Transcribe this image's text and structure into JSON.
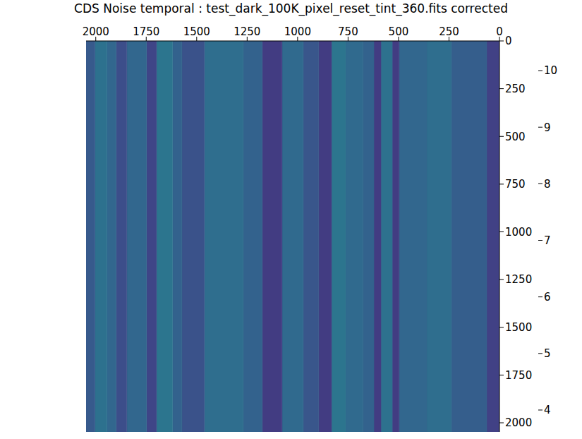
{
  "chart_data": {
    "type": "heatmap",
    "title": "CDS Noise temporal : test_dark_100K_pixel_reset_tint_360.fits corrected",
    "xlim": [
      2048,
      0
    ],
    "xticks": [
      2000,
      1750,
      1500,
      1250,
      1000,
      750,
      500,
      250,
      0
    ],
    "ylim": [
      2048,
      0
    ],
    "yticks": [
      0,
      250,
      500,
      750,
      1000,
      1250,
      1500,
      1750,
      2000
    ],
    "columns": [
      {
        "x": [
          0,
          63
        ],
        "value": 5.0
      },
      {
        "x": [
          63,
          238
        ],
        "value": 5.7
      },
      {
        "x": [
          238,
          360
        ],
        "value": 6.1
      },
      {
        "x": [
          360,
          497
        ],
        "value": 5.9
      },
      {
        "x": [
          497,
          531
        ],
        "value": 4.9
      },
      {
        "x": [
          531,
          587
        ],
        "value": 6.2
      },
      {
        "x": [
          587,
          622
        ],
        "value": 4.9
      },
      {
        "x": [
          622,
          675
        ],
        "value": 5.8
      },
      {
        "x": [
          675,
          762
        ],
        "value": 6.0
      },
      {
        "x": [
          762,
          832
        ],
        "value": 6.3
      },
      {
        "x": [
          832,
          895
        ],
        "value": 4.9
      },
      {
        "x": [
          895,
          972
        ],
        "value": 5.5
      },
      {
        "x": [
          972,
          1077
        ],
        "value": 6.0
      },
      {
        "x": [
          1077,
          1175
        ],
        "value": 4.9
      },
      {
        "x": [
          1175,
          1269
        ],
        "value": 5.8
      },
      {
        "x": [
          1269,
          1462
        ],
        "value": 6.1
      },
      {
        "x": [
          1462,
          1573
        ],
        "value": 5.4
      },
      {
        "x": [
          1573,
          1619
        ],
        "value": 5.8
      },
      {
        "x": [
          1619,
          1699
        ],
        "value": 6.3
      },
      {
        "x": [
          1699,
          1748
        ],
        "value": 5.1
      },
      {
        "x": [
          1748,
          1846
        ],
        "value": 5.9
      },
      {
        "x": [
          1846,
          1899
        ],
        "value": 5.3
      },
      {
        "x": [
          1899,
          1944
        ],
        "value": 5.9
      },
      {
        "x": [
          1944,
          2004
        ],
        "value": 6.2
      },
      {
        "x": [
          2004,
          2048
        ],
        "value": 5.6
      }
    ],
    "colorbar": {
      "range": [
        3.7,
        10.4
      ],
      "ticks": [
        4,
        5,
        6,
        7,
        8,
        9,
        10
      ]
    }
  }
}
